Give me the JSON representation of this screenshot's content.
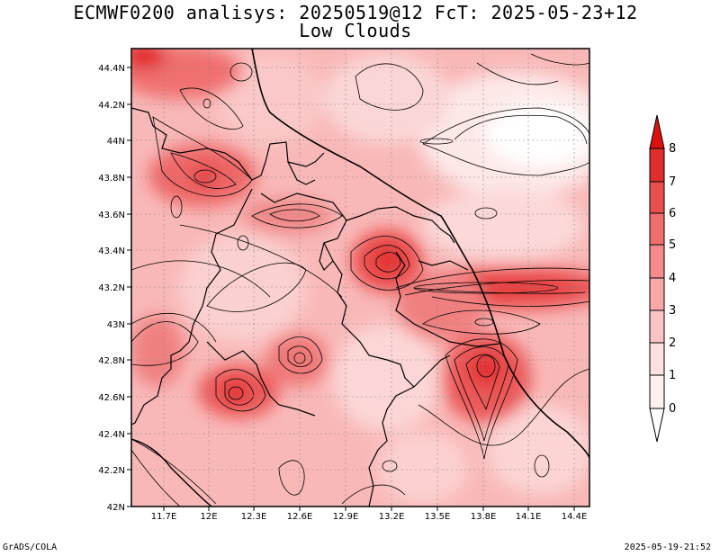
{
  "title_line1": "ECMWF0200 analisys: 20250519@12 FcT: 2025-05-23+12",
  "title_line2": "Low Clouds",
  "footer_left": "GrADS/COLA",
  "footer_right": "2025-05-19-21:52",
  "axes": {
    "x_ticks": [
      "11.7E",
      "12E",
      "12.3E",
      "12.6E",
      "12.9E",
      "13.2E",
      "13.5E",
      "13.8E",
      "14.1E",
      "14.4E"
    ],
    "y_ticks": [
      "44.4N",
      "44.2N",
      "44N",
      "43.8N",
      "43.6N",
      "43.4N",
      "43.2N",
      "43N",
      "42.8N",
      "42.6N",
      "42.4N",
      "42.2N",
      "42N"
    ]
  },
  "colorbar": {
    "levels": [
      "0",
      "1",
      "2",
      "3",
      "4",
      "5",
      "6",
      "7",
      "8"
    ],
    "colors": [
      "#ffffff",
      "#fde0e0",
      "#fbc4c4",
      "#f9a8a8",
      "#f58b8b",
      "#f06e6e",
      "#e84f4f",
      "#e02e2e",
      "#dd1010"
    ]
  }
}
